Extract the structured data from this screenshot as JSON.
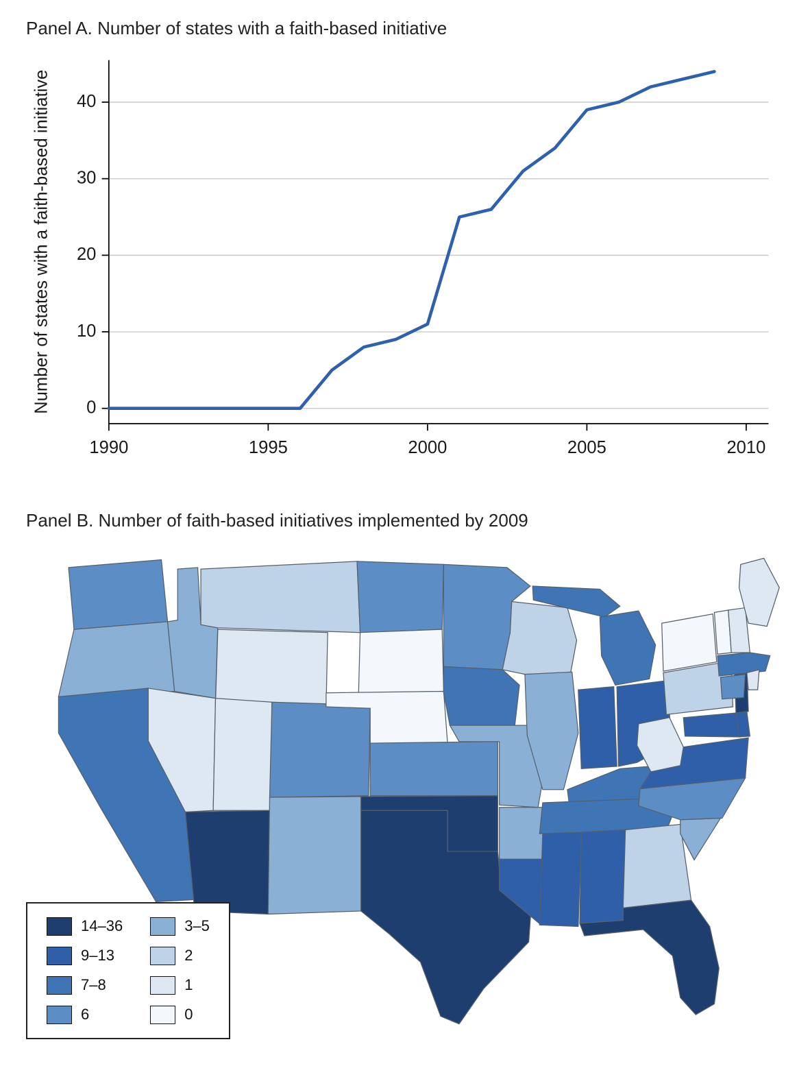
{
  "chart_data": [
    {
      "type": "line",
      "title": "Panel A. Number of states with a faith-based initiative",
      "ylabel": "Number of states with a faith-based initiative",
      "xlabel": "",
      "x": [
        1990,
        1991,
        1992,
        1993,
        1994,
        1995,
        1996,
        1997,
        1998,
        1999,
        2000,
        2001,
        2002,
        2003,
        2004,
        2005,
        2006,
        2007,
        2008,
        2009
      ],
      "values": [
        0,
        0,
        0,
        0,
        0,
        0,
        0,
        5,
        8,
        9,
        11,
        25,
        26,
        31,
        34,
        39,
        40,
        42,
        43,
        44
      ],
      "xlim": [
        1990,
        2010.7
      ],
      "ylim": [
        -2,
        45.5
      ],
      "xticks": [
        1990,
        1995,
        2000,
        2005,
        2010
      ],
      "yticks": [
        0,
        10,
        20,
        30,
        40
      ],
      "line_color": "#2e61ad",
      "grid": "horizontal"
    },
    {
      "type": "choropleth",
      "title": "Panel B. Number of faith-based initiatives implemented by 2009",
      "legend": [
        {
          "label": "14–36",
          "color": "#1f3e70"
        },
        {
          "label": "9–13",
          "color": "#2f5fa8"
        },
        {
          "label": "7–8",
          "color": "#3f74b5"
        },
        {
          "label": "6",
          "color": "#5c8ec5"
        },
        {
          "label": "3–5",
          "color": "#8ab0d6"
        },
        {
          "label": "2",
          "color": "#bed2e8"
        },
        {
          "label": "1",
          "color": "#dde8f3"
        },
        {
          "label": "0",
          "color": "#f4f8fc"
        }
      ],
      "states": {
        "WA": "6",
        "OR": "3–5",
        "CA": "7–8",
        "ID": "3–5",
        "NV": "1",
        "MT": "2",
        "WY": "1",
        "UT": "1",
        "CO": "6",
        "AZ": "14–36",
        "NM": "3–5",
        "ND": "6",
        "SD": "0",
        "NE": "0",
        "KS": "6",
        "OK": "14–36",
        "TX": "14–36",
        "MN": "6",
        "IA": "7–8",
        "MO": "3–5",
        "AR": "3–5",
        "LA": "9–13",
        "WI": "2",
        "IL": "3–5",
        "MI": "7–8",
        "IN": "9–13",
        "OH": "9–13",
        "KY": "7–8",
        "TN": "7–8",
        "MS": "9–13",
        "AL": "9–13",
        "GA": "2",
        "FL": "14–36",
        "SC": "3–5",
        "NC": "6",
        "VA": "9–13",
        "WV": "1",
        "PA": "2",
        "NY": "0",
        "NJ": "14–36",
        "DE": "9–13",
        "MD": "9–13",
        "VT": "0",
        "NH": "1",
        "MA": "7–8",
        "CT": "6",
        "RI": "1",
        "ME": "1"
      }
    }
  ]
}
